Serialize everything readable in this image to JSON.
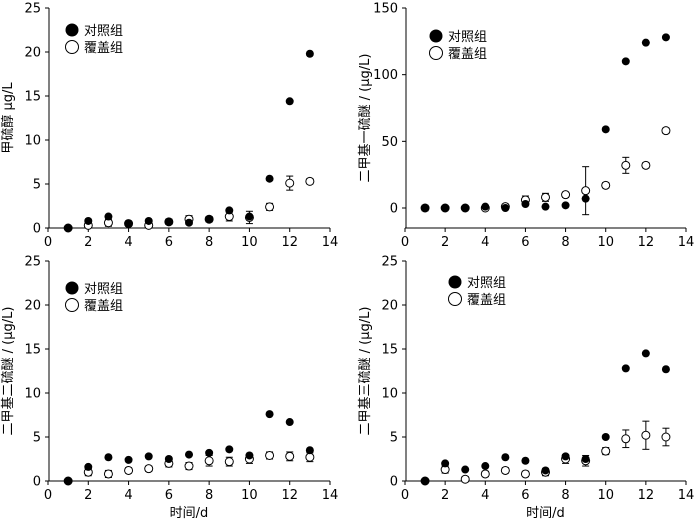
{
  "chart_data": [
    {
      "type": "scatter",
      "ylabel": "甲硫醇 μg/L",
      "xlabel": "",
      "xlim": [
        0,
        14
      ],
      "ylim": [
        0,
        25
      ],
      "xticks": [
        0,
        2,
        4,
        6,
        8,
        10,
        12,
        14
      ],
      "yticks": [
        0,
        5,
        10,
        15,
        20,
        25
      ],
      "legend_position": "top-left",
      "series": [
        {
          "name": "对照组",
          "marker": "filled",
          "x": [
            1,
            2,
            3,
            4,
            5,
            6,
            7,
            8,
            9,
            10,
            11,
            12,
            13
          ],
          "y": [
            0,
            0.8,
            1.3,
            0.5,
            0.8,
            0.7,
            0.6,
            1.0,
            2.0,
            1.3,
            5.6,
            14.4,
            19.8
          ]
        },
        {
          "name": "覆盖组",
          "marker": "open",
          "x": [
            1,
            2,
            3,
            4,
            5,
            6,
            7,
            8,
            9,
            10,
            11,
            12,
            13
          ],
          "y": [
            0,
            0.3,
            0.6,
            0.5,
            0.3,
            0.7,
            1.0,
            1.0,
            1.3,
            1.2,
            2.4,
            5.1,
            5.3
          ],
          "err": [
            0.1,
            0.3,
            0.4,
            0.3,
            0.2,
            0.3,
            0.4,
            0.3,
            0.5,
            0.7,
            0.4,
            0.8,
            0.3
          ]
        }
      ]
    },
    {
      "type": "scatter",
      "ylabel": "二甲基一硫醚 / (μg/L)",
      "xlabel": "",
      "xlim": [
        0,
        14
      ],
      "ylim": [
        -15,
        150
      ],
      "xticks": [
        0,
        2,
        4,
        6,
        8,
        10,
        12,
        14
      ],
      "yticks": [
        0,
        50,
        100,
        150
      ],
      "legend_position": "top-left",
      "series": [
        {
          "name": "对照组",
          "marker": "filled",
          "x": [
            1,
            2,
            3,
            4,
            5,
            6,
            7,
            8,
            9,
            10,
            11,
            12,
            13
          ],
          "y": [
            0,
            0,
            0,
            1,
            0,
            3,
            1,
            2,
            7,
            59,
            110,
            124,
            128
          ]
        },
        {
          "name": "覆盖组",
          "marker": "open",
          "x": [
            1,
            2,
            3,
            4,
            5,
            6,
            7,
            8,
            9,
            10,
            11,
            12,
            13
          ],
          "y": [
            0,
            0,
            0,
            0,
            1,
            6,
            8,
            10,
            13,
            17,
            32,
            32,
            58
          ],
          "err": [
            2,
            1,
            1,
            1,
            2,
            3,
            3,
            2,
            18,
            2,
            6,
            2,
            2
          ]
        }
      ]
    },
    {
      "type": "scatter",
      "ylabel": "二甲基二硫醚 / (μg/L)",
      "xlabel": "时间/d",
      "xlim": [
        0,
        14
      ],
      "ylim": [
        0,
        25
      ],
      "xticks": [
        0,
        2,
        4,
        6,
        8,
        10,
        12,
        14
      ],
      "yticks": [
        0,
        5,
        10,
        15,
        20,
        25
      ],
      "legend_position": "top-left",
      "series": [
        {
          "name": "对照组",
          "marker": "filled",
          "x": [
            1,
            2,
            3,
            4,
            5,
            6,
            7,
            8,
            9,
            10,
            11,
            12,
            13
          ],
          "y": [
            0,
            1.6,
            2.7,
            2.4,
            2.8,
            2.5,
            3.0,
            3.2,
            3.6,
            2.9,
            7.6,
            6.7,
            3.5
          ]
        },
        {
          "name": "覆盖组",
          "marker": "open",
          "x": [
            1,
            2,
            3,
            4,
            5,
            6,
            7,
            8,
            9,
            10,
            11,
            12,
            13
          ],
          "y": [
            0,
            1.0,
            0.8,
            1.2,
            1.4,
            2.0,
            1.7,
            2.3,
            2.2,
            2.5,
            2.9,
            2.8,
            2.7
          ],
          "err": [
            0.2,
            0.4,
            0.4,
            0.3,
            0.3,
            0.4,
            0.4,
            0.6,
            0.5,
            0.5,
            0.4,
            0.5,
            0.5
          ]
        }
      ]
    },
    {
      "type": "scatter",
      "ylabel": "二甲基三硫醚 / (μg/L)",
      "xlabel": "时间/d",
      "xlim": [
        0,
        14
      ],
      "ylim": [
        0,
        25
      ],
      "xticks": [
        0,
        2,
        4,
        6,
        8,
        10,
        12,
        14
      ],
      "yticks": [
        0,
        5,
        10,
        15,
        20,
        25
      ],
      "legend_position": "top-left",
      "series": [
        {
          "name": "对照组",
          "marker": "filled",
          "x": [
            1,
            2,
            3,
            4,
            5,
            6,
            7,
            8,
            9,
            10,
            11,
            12,
            13
          ],
          "y": [
            0,
            2.0,
            1.3,
            1.7,
            2.7,
            2.3,
            1.2,
            2.8,
            2.5,
            5.0,
            12.8,
            14.5,
            12.7
          ]
        },
        {
          "name": "覆盖组",
          "marker": "open",
          "x": [
            1,
            2,
            3,
            4,
            5,
            6,
            7,
            8,
            9,
            10,
            11,
            12,
            13
          ],
          "y": [
            0,
            1.3,
            0.2,
            0.8,
            1.2,
            0.8,
            1.0,
            2.5,
            2.3,
            3.4,
            4.8,
            5.2,
            5.0
          ],
          "err": [
            0.2,
            0.4,
            0.3,
            0.3,
            0.3,
            0.3,
            0.4,
            0.5,
            0.6,
            0.4,
            1.0,
            1.6,
            1.0
          ]
        }
      ]
    }
  ]
}
